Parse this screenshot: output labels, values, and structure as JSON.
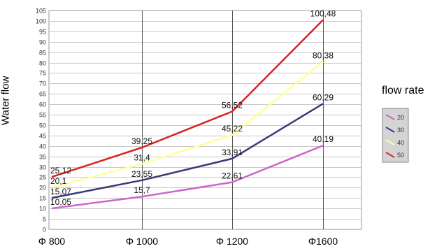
{
  "chart_data": {
    "type": "line",
    "categories": [
      "Φ 800",
      "Φ 1000",
      "Φ 1200",
      "Φ1600"
    ],
    "ylabel": "Water flow",
    "legend_title": "flow rate",
    "ylim": [
      0,
      105
    ],
    "ytick_step": 5,
    "grid": true,
    "legend_position": "right",
    "series": [
      {
        "name": "20",
        "values": [
          10.05,
          15.7,
          22.61,
          40.19
        ],
        "labels": [
          "10,05",
          "15,7",
          "22,61",
          "40,19"
        ],
        "color": "#cc66cc"
      },
      {
        "name": "30",
        "values": [
          15.07,
          23.55,
          33.91,
          60.29
        ],
        "labels": [
          "15,07",
          "23,55",
          "33,91",
          "60,29"
        ],
        "color": "#3a3a7a"
      },
      {
        "name": "40",
        "values": [
          20.1,
          31.4,
          45.22,
          80.38
        ],
        "labels": [
          "20,1",
          "31,4",
          "45,22",
          "80,38"
        ],
        "color": "#ffff99"
      },
      {
        "name": "50",
        "values": [
          25.12,
          39.25,
          56.52,
          100.48
        ],
        "labels": [
          "25,12",
          "39,25",
          "56,52",
          "100,48"
        ],
        "color": "#dd2222"
      }
    ]
  }
}
